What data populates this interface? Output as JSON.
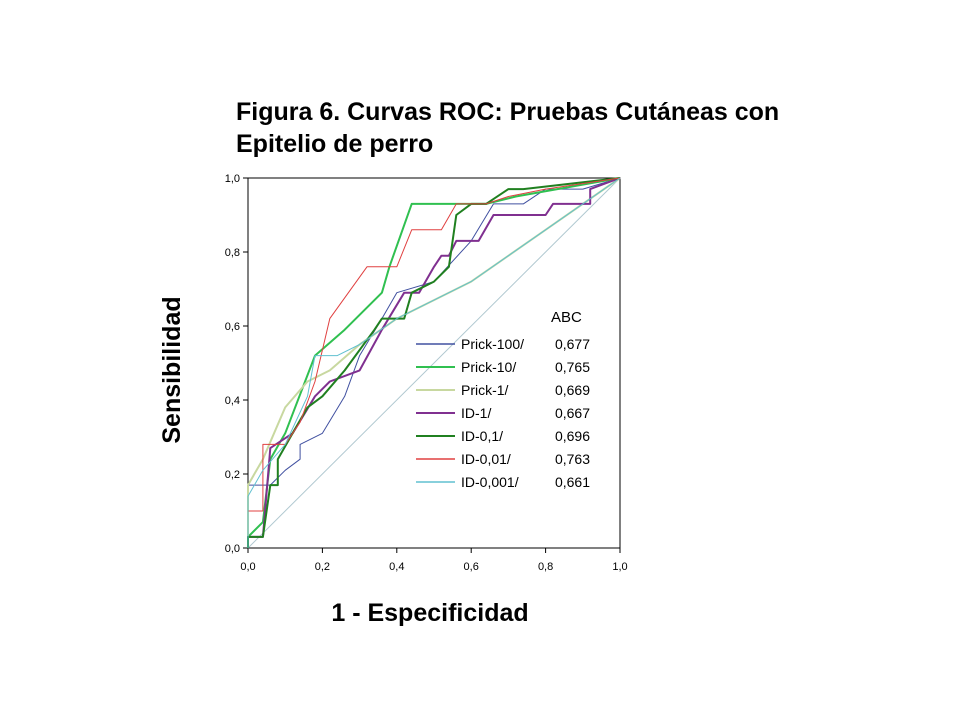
{
  "chart_data": {
    "type": "line",
    "title_line1": "Figura 6. Curvas ROC: Pruebas Cutáneas con",
    "title_line2": "Epitelio de perro",
    "xlabel": "1 - Especificidad",
    "ylabel": "Sensibilidad",
    "xlim": [
      0,
      1
    ],
    "ylim": [
      0,
      1
    ],
    "x_ticks": [
      "0,0",
      "0,2",
      "0,4",
      "0,6",
      "0,8",
      "1,0"
    ],
    "y_ticks": [
      "0,0",
      "0,2",
      "0,4",
      "0,6",
      "0,8",
      "1,0"
    ],
    "grid": false,
    "legend_header": "ABC",
    "legend_position": "center-right",
    "series": [
      {
        "name": "Prick-100/",
        "auc": "0,677",
        "color": "#4050a0",
        "points": [
          [
            0,
            0
          ],
          [
            0,
            0.17
          ],
          [
            0.06,
            0.17
          ],
          [
            0.1,
            0.21
          ],
          [
            0.14,
            0.24
          ],
          [
            0.14,
            0.28
          ],
          [
            0.2,
            0.31
          ],
          [
            0.26,
            0.41
          ],
          [
            0.3,
            0.52
          ],
          [
            0.36,
            0.62
          ],
          [
            0.4,
            0.69
          ],
          [
            0.5,
            0.72
          ],
          [
            0.6,
            0.83
          ],
          [
            0.66,
            0.93
          ],
          [
            0.74,
            0.93
          ],
          [
            0.8,
            0.97
          ],
          [
            0.9,
            0.97
          ],
          [
            1,
            1
          ]
        ]
      },
      {
        "name": "Prick-10/",
        "auc": "0,765",
        "color": "#30c050",
        "points": [
          [
            0,
            0
          ],
          [
            0,
            0.03
          ],
          [
            0.04,
            0.07
          ],
          [
            0.06,
            0.24
          ],
          [
            0.1,
            0.31
          ],
          [
            0.18,
            0.52
          ],
          [
            0.26,
            0.59
          ],
          [
            0.36,
            0.69
          ],
          [
            0.38,
            0.76
          ],
          [
            0.44,
            0.93
          ],
          [
            0.56,
            0.93
          ],
          [
            0.64,
            0.93
          ],
          [
            0.72,
            0.95
          ],
          [
            1,
            1
          ]
        ]
      },
      {
        "name": "Prick-1/",
        "auc": "0,669",
        "color": "#c8d8a0",
        "points": [
          [
            0,
            0
          ],
          [
            0,
            0.17
          ],
          [
            0.04,
            0.24
          ],
          [
            0.1,
            0.38
          ],
          [
            0.16,
            0.45
          ],
          [
            0.22,
            0.48
          ],
          [
            0.3,
            0.55
          ],
          [
            0.4,
            0.62
          ],
          [
            0.6,
            0.72
          ],
          [
            0.8,
            0.86
          ],
          [
            1,
            1
          ]
        ]
      },
      {
        "name": "ID-1/",
        "auc": "0,667",
        "color": "#803090",
        "points": [
          [
            0,
            0
          ],
          [
            0,
            0.03
          ],
          [
            0.02,
            0.03
          ],
          [
            0.04,
            0.03
          ],
          [
            0.06,
            0.27
          ],
          [
            0.12,
            0.31
          ],
          [
            0.18,
            0.41
          ],
          [
            0.22,
            0.45
          ],
          [
            0.3,
            0.48
          ],
          [
            0.36,
            0.59
          ],
          [
            0.42,
            0.69
          ],
          [
            0.46,
            0.69
          ],
          [
            0.5,
            0.76
          ],
          [
            0.52,
            0.79
          ],
          [
            0.54,
            0.79
          ],
          [
            0.56,
            0.83
          ],
          [
            0.62,
            0.83
          ],
          [
            0.66,
            0.9
          ],
          [
            0.8,
            0.9
          ],
          [
            0.82,
            0.93
          ],
          [
            0.92,
            0.93
          ],
          [
            0.92,
            0.97
          ],
          [
            1,
            1
          ]
        ]
      },
      {
        "name": "ID-0,1/",
        "auc": "0,696",
        "color": "#208020",
        "points": [
          [
            0,
            0
          ],
          [
            0,
            0.03
          ],
          [
            0.02,
            0.03
          ],
          [
            0.04,
            0.03
          ],
          [
            0.06,
            0.17
          ],
          [
            0.08,
            0.17
          ],
          [
            0.08,
            0.24
          ],
          [
            0.12,
            0.31
          ],
          [
            0.16,
            0.38
          ],
          [
            0.2,
            0.41
          ],
          [
            0.26,
            0.48
          ],
          [
            0.34,
            0.59
          ],
          [
            0.36,
            0.62
          ],
          [
            0.42,
            0.62
          ],
          [
            0.44,
            0.69
          ],
          [
            0.5,
            0.72
          ],
          [
            0.54,
            0.76
          ],
          [
            0.56,
            0.9
          ],
          [
            0.6,
            0.93
          ],
          [
            0.64,
            0.93
          ],
          [
            0.7,
            0.97
          ],
          [
            0.74,
            0.97
          ],
          [
            1,
            1
          ]
        ]
      },
      {
        "name": "ID-0,01/",
        "auc": "0,763",
        "color": "#e04040",
        "points": [
          [
            0,
            0
          ],
          [
            0,
            0.1
          ],
          [
            0.04,
            0.1
          ],
          [
            0.04,
            0.28
          ],
          [
            0.1,
            0.28
          ],
          [
            0.14,
            0.34
          ],
          [
            0.18,
            0.45
          ],
          [
            0.22,
            0.62
          ],
          [
            0.32,
            0.76
          ],
          [
            0.4,
            0.76
          ],
          [
            0.44,
            0.86
          ],
          [
            0.52,
            0.86
          ],
          [
            0.56,
            0.93
          ],
          [
            0.64,
            0.93
          ],
          [
            0.7,
            0.95
          ],
          [
            0.8,
            0.97
          ],
          [
            1,
            1
          ]
        ]
      },
      {
        "name": "ID-0,001/",
        "auc": "0,661",
        "color": "#60c0d0",
        "points": [
          [
            0,
            0
          ],
          [
            0,
            0.14
          ],
          [
            0.04,
            0.21
          ],
          [
            0.1,
            0.28
          ],
          [
            0.16,
            0.41
          ],
          [
            0.18,
            0.52
          ],
          [
            0.24,
            0.52
          ],
          [
            0.3,
            0.55
          ],
          [
            0.4,
            0.62
          ],
          [
            0.6,
            0.72
          ],
          [
            0.8,
            0.86
          ],
          [
            1,
            1
          ]
        ]
      }
    ]
  }
}
